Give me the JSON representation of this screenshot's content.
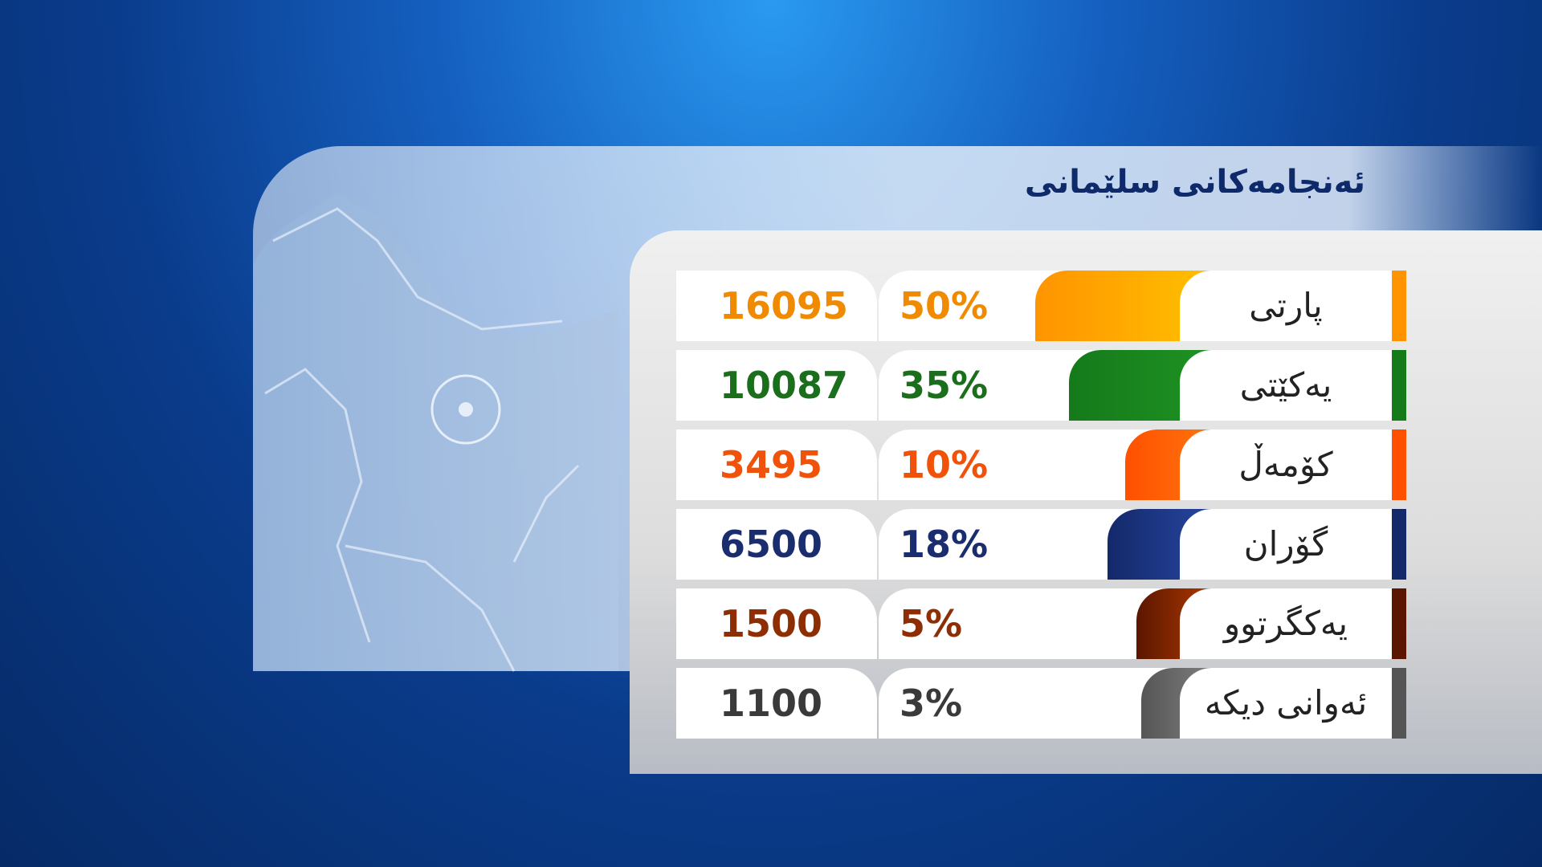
{
  "title": "ئەنجامەکانی سلێمانی",
  "rows": [
    {
      "party": "پارتی",
      "percent": {
        "value": 50,
        "label": "50%"
      },
      "votes": 16095,
      "color": "#ff9400",
      "color2": "#ffc400",
      "text_color": "#f08a00"
    },
    {
      "party": "یەکێتی",
      "percent": {
        "value": 35,
        "label": "35%"
      },
      "votes": 10087,
      "color": "#157a1a",
      "color2": "#1f9424",
      "text_color": "#1b6e1b"
    },
    {
      "party": "کۆمەڵ",
      "percent": {
        "value": 10,
        "label": "10%"
      },
      "votes": 3495,
      "color": "#ff5000",
      "color2": "#ff7a10",
      "text_color": "#f0520a"
    },
    {
      "party": "گۆران",
      "percent": {
        "value": 18,
        "label": "18%"
      },
      "votes": 6500,
      "color": "#14296a",
      "color2": "#2a4aa8",
      "text_color": "#1a2d6e"
    },
    {
      "party": "یەکگرتوو",
      "percent": {
        "value": 5,
        "label": "5%"
      },
      "votes": 1500,
      "color": "#5a1600",
      "color2": "#c04000",
      "text_color": "#8e2e05"
    },
    {
      "party": "ئەوانی دیکە",
      "percent": {
        "value": 3,
        "label": "3%"
      },
      "votes": 1100,
      "color": "#555555",
      "color2": "#888888",
      "text_color": "#3a3a3a"
    }
  ]
}
